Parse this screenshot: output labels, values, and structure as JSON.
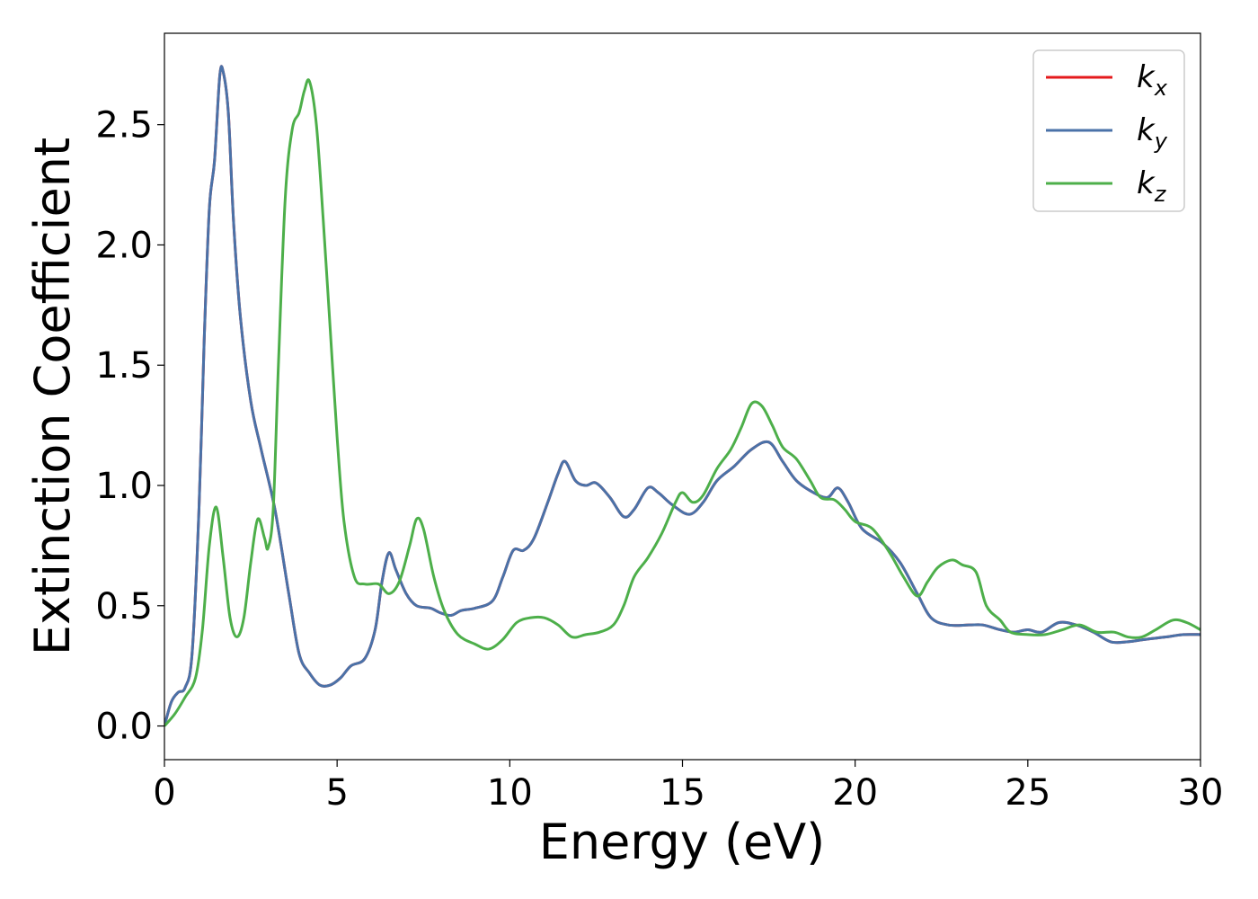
{
  "chart_data": {
    "type": "line",
    "title": "",
    "xlabel": "Energy (eV)",
    "ylabel": "Extinction Coefficient",
    "xlim": [
      0,
      30
    ],
    "ylim": [
      -0.14,
      2.88
    ],
    "x_ticks": [
      0,
      5,
      10,
      15,
      20,
      25,
      30
    ],
    "x_tick_labels": [
      "0",
      "5",
      "10",
      "15",
      "20",
      "25",
      "30"
    ],
    "y_ticks": [
      0.0,
      0.5,
      1.0,
      1.5,
      2.0,
      2.5
    ],
    "y_tick_labels": [
      "0.0",
      "0.5",
      "1.0",
      "1.5",
      "2.0",
      "2.5"
    ],
    "grid": false,
    "legend_position": "top-right",
    "series": [
      {
        "name": "k_x",
        "legend_base": "k",
        "legend_sub": "x",
        "color": "#e41a1c",
        "points": [
          [
            0,
            0
          ],
          [
            0.2,
            0.1
          ],
          [
            0.4,
            0.14
          ],
          [
            0.6,
            0.16
          ],
          [
            0.8,
            0.3
          ],
          [
            1.0,
            0.9
          ],
          [
            1.15,
            1.6
          ],
          [
            1.3,
            2.15
          ],
          [
            1.45,
            2.35
          ],
          [
            1.6,
            2.7
          ],
          [
            1.7,
            2.72
          ],
          [
            1.85,
            2.55
          ],
          [
            2.0,
            2.1
          ],
          [
            2.2,
            1.7
          ],
          [
            2.5,
            1.35
          ],
          [
            2.8,
            1.15
          ],
          [
            3.2,
            0.9
          ],
          [
            3.6,
            0.55
          ],
          [
            3.9,
            0.3
          ],
          [
            4.2,
            0.22
          ],
          [
            4.5,
            0.17
          ],
          [
            4.8,
            0.17
          ],
          [
            5.1,
            0.2
          ],
          [
            5.4,
            0.25
          ],
          [
            5.8,
            0.28
          ],
          [
            6.1,
            0.4
          ],
          [
            6.3,
            0.6
          ],
          [
            6.5,
            0.72
          ],
          [
            6.7,
            0.65
          ],
          [
            7.0,
            0.55
          ],
          [
            7.3,
            0.5
          ],
          [
            7.7,
            0.49
          ],
          [
            8.0,
            0.47
          ],
          [
            8.3,
            0.46
          ],
          [
            8.6,
            0.48
          ],
          [
            9.0,
            0.49
          ],
          [
            9.5,
            0.52
          ],
          [
            9.8,
            0.62
          ],
          [
            10.1,
            0.73
          ],
          [
            10.4,
            0.73
          ],
          [
            10.7,
            0.78
          ],
          [
            11.1,
            0.93
          ],
          [
            11.4,
            1.05
          ],
          [
            11.6,
            1.1
          ],
          [
            11.9,
            1.02
          ],
          [
            12.2,
            1.0
          ],
          [
            12.5,
            1.01
          ],
          [
            12.9,
            0.95
          ],
          [
            13.3,
            0.87
          ],
          [
            13.6,
            0.9
          ],
          [
            14.0,
            0.99
          ],
          [
            14.3,
            0.97
          ],
          [
            14.7,
            0.92
          ],
          [
            15.2,
            0.88
          ],
          [
            15.6,
            0.93
          ],
          [
            16.0,
            1.02
          ],
          [
            16.5,
            1.08
          ],
          [
            17.0,
            1.15
          ],
          [
            17.5,
            1.18
          ],
          [
            17.9,
            1.1
          ],
          [
            18.3,
            1.02
          ],
          [
            18.8,
            0.97
          ],
          [
            19.2,
            0.95
          ],
          [
            19.5,
            0.99
          ],
          [
            19.8,
            0.93
          ],
          [
            20.2,
            0.82
          ],
          [
            20.8,
            0.76
          ],
          [
            21.3,
            0.68
          ],
          [
            21.8,
            0.55
          ],
          [
            22.2,
            0.45
          ],
          [
            22.7,
            0.42
          ],
          [
            23.3,
            0.42
          ],
          [
            23.7,
            0.42
          ],
          [
            24.2,
            0.4
          ],
          [
            24.6,
            0.39
          ],
          [
            25.0,
            0.4
          ],
          [
            25.4,
            0.39
          ],
          [
            25.9,
            0.43
          ],
          [
            26.4,
            0.42
          ],
          [
            26.9,
            0.39
          ],
          [
            27.4,
            0.35
          ],
          [
            27.9,
            0.35
          ],
          [
            28.4,
            0.36
          ],
          [
            29.0,
            0.37
          ],
          [
            29.5,
            0.38
          ],
          [
            30.0,
            0.38
          ]
        ]
      },
      {
        "name": "k_y",
        "legend_base": "k",
        "legend_sub": "y",
        "color": "#4a72a8",
        "points": [
          [
            0,
            0
          ],
          [
            0.2,
            0.1
          ],
          [
            0.4,
            0.14
          ],
          [
            0.6,
            0.16
          ],
          [
            0.8,
            0.3
          ],
          [
            1.0,
            0.9
          ],
          [
            1.15,
            1.6
          ],
          [
            1.3,
            2.15
          ],
          [
            1.45,
            2.35
          ],
          [
            1.6,
            2.7
          ],
          [
            1.7,
            2.72
          ],
          [
            1.85,
            2.55
          ],
          [
            2.0,
            2.1
          ],
          [
            2.2,
            1.7
          ],
          [
            2.5,
            1.35
          ],
          [
            2.8,
            1.15
          ],
          [
            3.2,
            0.9
          ],
          [
            3.6,
            0.55
          ],
          [
            3.9,
            0.3
          ],
          [
            4.2,
            0.22
          ],
          [
            4.5,
            0.17
          ],
          [
            4.8,
            0.17
          ],
          [
            5.1,
            0.2
          ],
          [
            5.4,
            0.25
          ],
          [
            5.8,
            0.28
          ],
          [
            6.1,
            0.4
          ],
          [
            6.3,
            0.6
          ],
          [
            6.5,
            0.72
          ],
          [
            6.7,
            0.65
          ],
          [
            7.0,
            0.55
          ],
          [
            7.3,
            0.5
          ],
          [
            7.7,
            0.49
          ],
          [
            8.0,
            0.47
          ],
          [
            8.3,
            0.46
          ],
          [
            8.6,
            0.48
          ],
          [
            9.0,
            0.49
          ],
          [
            9.5,
            0.52
          ],
          [
            9.8,
            0.62
          ],
          [
            10.1,
            0.73
          ],
          [
            10.4,
            0.73
          ],
          [
            10.7,
            0.78
          ],
          [
            11.1,
            0.93
          ],
          [
            11.4,
            1.05
          ],
          [
            11.6,
            1.1
          ],
          [
            11.9,
            1.02
          ],
          [
            12.2,
            1.0
          ],
          [
            12.5,
            1.01
          ],
          [
            12.9,
            0.95
          ],
          [
            13.3,
            0.87
          ],
          [
            13.6,
            0.9
          ],
          [
            14.0,
            0.99
          ],
          [
            14.3,
            0.97
          ],
          [
            14.7,
            0.92
          ],
          [
            15.2,
            0.88
          ],
          [
            15.6,
            0.93
          ],
          [
            16.0,
            1.02
          ],
          [
            16.5,
            1.08
          ],
          [
            17.0,
            1.15
          ],
          [
            17.5,
            1.18
          ],
          [
            17.9,
            1.1
          ],
          [
            18.3,
            1.02
          ],
          [
            18.8,
            0.97
          ],
          [
            19.2,
            0.95
          ],
          [
            19.5,
            0.99
          ],
          [
            19.8,
            0.93
          ],
          [
            20.2,
            0.82
          ],
          [
            20.8,
            0.76
          ],
          [
            21.3,
            0.68
          ],
          [
            21.8,
            0.55
          ],
          [
            22.2,
            0.45
          ],
          [
            22.7,
            0.42
          ],
          [
            23.3,
            0.42
          ],
          [
            23.7,
            0.42
          ],
          [
            24.2,
            0.4
          ],
          [
            24.6,
            0.39
          ],
          [
            25.0,
            0.4
          ],
          [
            25.4,
            0.39
          ],
          [
            25.9,
            0.43
          ],
          [
            26.4,
            0.42
          ],
          [
            26.9,
            0.39
          ],
          [
            27.4,
            0.35
          ],
          [
            27.9,
            0.35
          ],
          [
            28.4,
            0.36
          ],
          [
            29.0,
            0.37
          ],
          [
            29.5,
            0.38
          ],
          [
            30.0,
            0.38
          ]
        ]
      },
      {
        "name": "k_z",
        "legend_base": "k",
        "legend_sub": "z",
        "color": "#4daf4a",
        "points": [
          [
            0,
            0
          ],
          [
            0.3,
            0.05
          ],
          [
            0.6,
            0.12
          ],
          [
            0.9,
            0.2
          ],
          [
            1.1,
            0.4
          ],
          [
            1.3,
            0.75
          ],
          [
            1.5,
            0.91
          ],
          [
            1.7,
            0.7
          ],
          [
            1.9,
            0.45
          ],
          [
            2.1,
            0.37
          ],
          [
            2.3,
            0.45
          ],
          [
            2.5,
            0.68
          ],
          [
            2.7,
            0.86
          ],
          [
            2.9,
            0.78
          ],
          [
            3.0,
            0.74
          ],
          [
            3.15,
            0.9
          ],
          [
            3.3,
            1.5
          ],
          [
            3.5,
            2.2
          ],
          [
            3.7,
            2.48
          ],
          [
            3.9,
            2.55
          ],
          [
            4.05,
            2.64
          ],
          [
            4.2,
            2.68
          ],
          [
            4.4,
            2.5
          ],
          [
            4.6,
            2.1
          ],
          [
            4.8,
            1.65
          ],
          [
            5.0,
            1.2
          ],
          [
            5.2,
            0.85
          ],
          [
            5.5,
            0.62
          ],
          [
            5.8,
            0.59
          ],
          [
            6.2,
            0.59
          ],
          [
            6.5,
            0.55
          ],
          [
            6.8,
            0.6
          ],
          [
            7.1,
            0.75
          ],
          [
            7.3,
            0.86
          ],
          [
            7.5,
            0.82
          ],
          [
            7.8,
            0.62
          ],
          [
            8.1,
            0.48
          ],
          [
            8.5,
            0.38
          ],
          [
            9.0,
            0.34
          ],
          [
            9.4,
            0.32
          ],
          [
            9.8,
            0.36
          ],
          [
            10.2,
            0.43
          ],
          [
            10.6,
            0.45
          ],
          [
            11.0,
            0.45
          ],
          [
            11.4,
            0.42
          ],
          [
            11.8,
            0.37
          ],
          [
            12.2,
            0.38
          ],
          [
            12.6,
            0.39
          ],
          [
            13.0,
            0.42
          ],
          [
            13.3,
            0.5
          ],
          [
            13.6,
            0.62
          ],
          [
            14.0,
            0.7
          ],
          [
            14.4,
            0.8
          ],
          [
            14.8,
            0.93
          ],
          [
            15.0,
            0.97
          ],
          [
            15.3,
            0.93
          ],
          [
            15.6,
            0.96
          ],
          [
            16.0,
            1.07
          ],
          [
            16.4,
            1.15
          ],
          [
            16.7,
            1.24
          ],
          [
            17.0,
            1.34
          ],
          [
            17.3,
            1.33
          ],
          [
            17.6,
            1.25
          ],
          [
            17.9,
            1.16
          ],
          [
            18.3,
            1.11
          ],
          [
            18.7,
            1.02
          ],
          [
            19.0,
            0.95
          ],
          [
            19.4,
            0.94
          ],
          [
            19.7,
            0.9
          ],
          [
            20.0,
            0.85
          ],
          [
            20.5,
            0.82
          ],
          [
            21.0,
            0.72
          ],
          [
            21.4,
            0.62
          ],
          [
            21.8,
            0.54
          ],
          [
            22.1,
            0.6
          ],
          [
            22.4,
            0.66
          ],
          [
            22.8,
            0.69
          ],
          [
            23.1,
            0.67
          ],
          [
            23.5,
            0.64
          ],
          [
            23.8,
            0.5
          ],
          [
            24.2,
            0.44
          ],
          [
            24.5,
            0.39
          ],
          [
            25.0,
            0.38
          ],
          [
            25.5,
            0.38
          ],
          [
            26.0,
            0.4
          ],
          [
            26.5,
            0.42
          ],
          [
            27.0,
            0.39
          ],
          [
            27.5,
            0.39
          ],
          [
            27.9,
            0.37
          ],
          [
            28.3,
            0.37
          ],
          [
            28.7,
            0.4
          ],
          [
            29.2,
            0.44
          ],
          [
            29.6,
            0.43
          ],
          [
            30.0,
            0.4
          ]
        ]
      }
    ]
  }
}
